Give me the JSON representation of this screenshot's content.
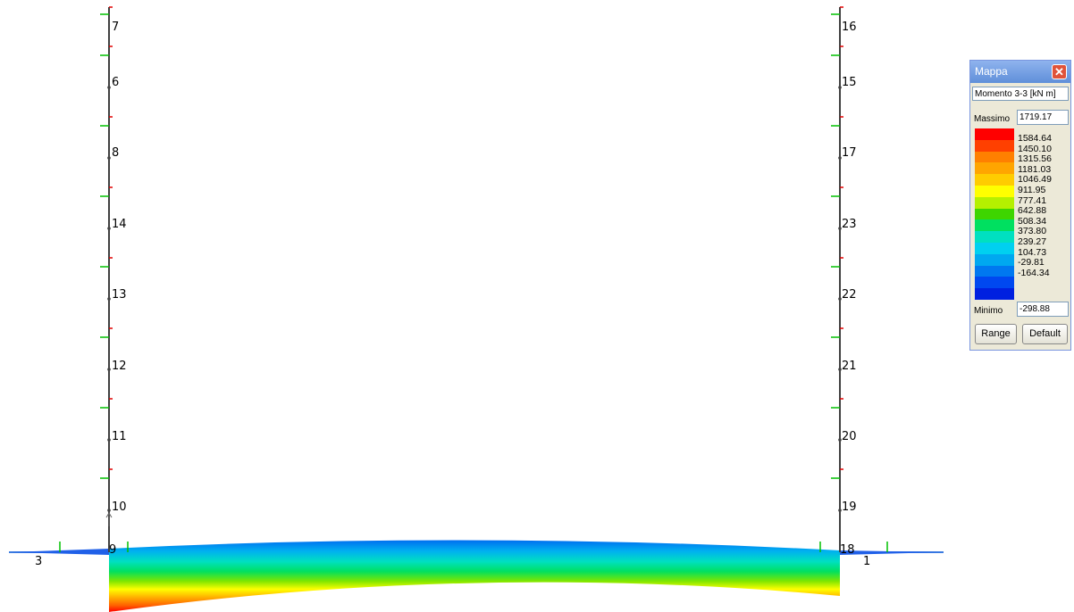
{
  "node_labels": {
    "left_column": [
      "7",
      "6",
      "8",
      "14",
      "13",
      "12",
      "11",
      "10",
      "9"
    ],
    "right_column": [
      "16",
      "15",
      "17",
      "23",
      "22",
      "21",
      "20",
      "19",
      "18"
    ],
    "beam_left": "3",
    "beam_right": "1"
  },
  "mappa": {
    "title": "Mappa",
    "quantity": "Momento 3-3 [kN  m]",
    "max_label": "Massimo",
    "max_value": "1719.17",
    "min_label": "Minimo",
    "min_value": "-298.88",
    "range_button": "Range",
    "default_button": "Default",
    "legend_values": [
      "1584.64",
      "1450.10",
      "1315.56",
      "1181.03",
      "1046.49",
      "911.95",
      "777.41",
      "642.88",
      "508.34",
      "373.80",
      "239.27",
      "104.73",
      "-29.81",
      "-164.34"
    ],
    "legend_colors": [
      "#ff0000",
      "#ff4000",
      "#ff8000",
      "#ffa500",
      "#ffcc00",
      "#ffff00",
      "#b5f000",
      "#3ed500",
      "#00e060",
      "#00e0c0",
      "#00d0f0",
      "#00a8f0",
      "#0078f0",
      "#0048f0",
      "#0020e0"
    ]
  }
}
